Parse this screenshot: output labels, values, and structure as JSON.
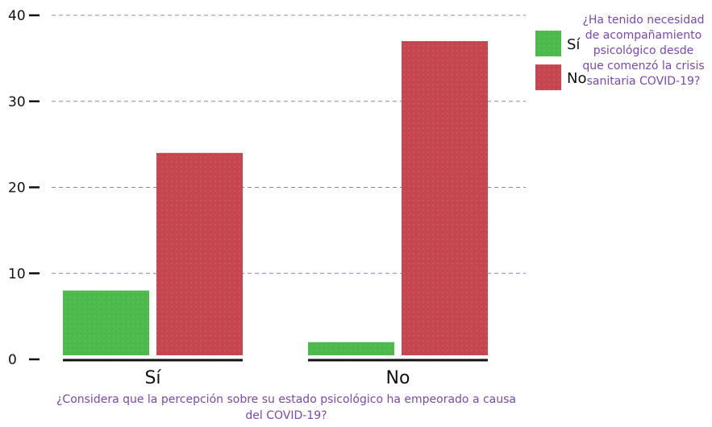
{
  "chart_data": {
    "type": "bar",
    "categories": [
      "Sí",
      "No"
    ],
    "series": [
      {
        "name": "Sí",
        "color": "#4cb94c",
        "values": [
          8,
          2
        ]
      },
      {
        "name": "No",
        "color": "#c5464f",
        "values": [
          24,
          37
        ]
      }
    ],
    "ylim": [
      0,
      40
    ],
    "yticks": [
      0,
      10,
      20,
      30,
      40
    ],
    "xlabel": "¿Considera que la percepción sobre su estado psicológico ha empeorado a causa del COVID-19?",
    "legend_title": "¿Ha tenido necesidad de acompañamiento psicológico desde que comenzó la crisis sanitaria COVID-19?",
    "legend_position": "top-right",
    "grid": true,
    "grid_color": "#9b7cb8",
    "text_accent_color": "#7a48b0"
  }
}
